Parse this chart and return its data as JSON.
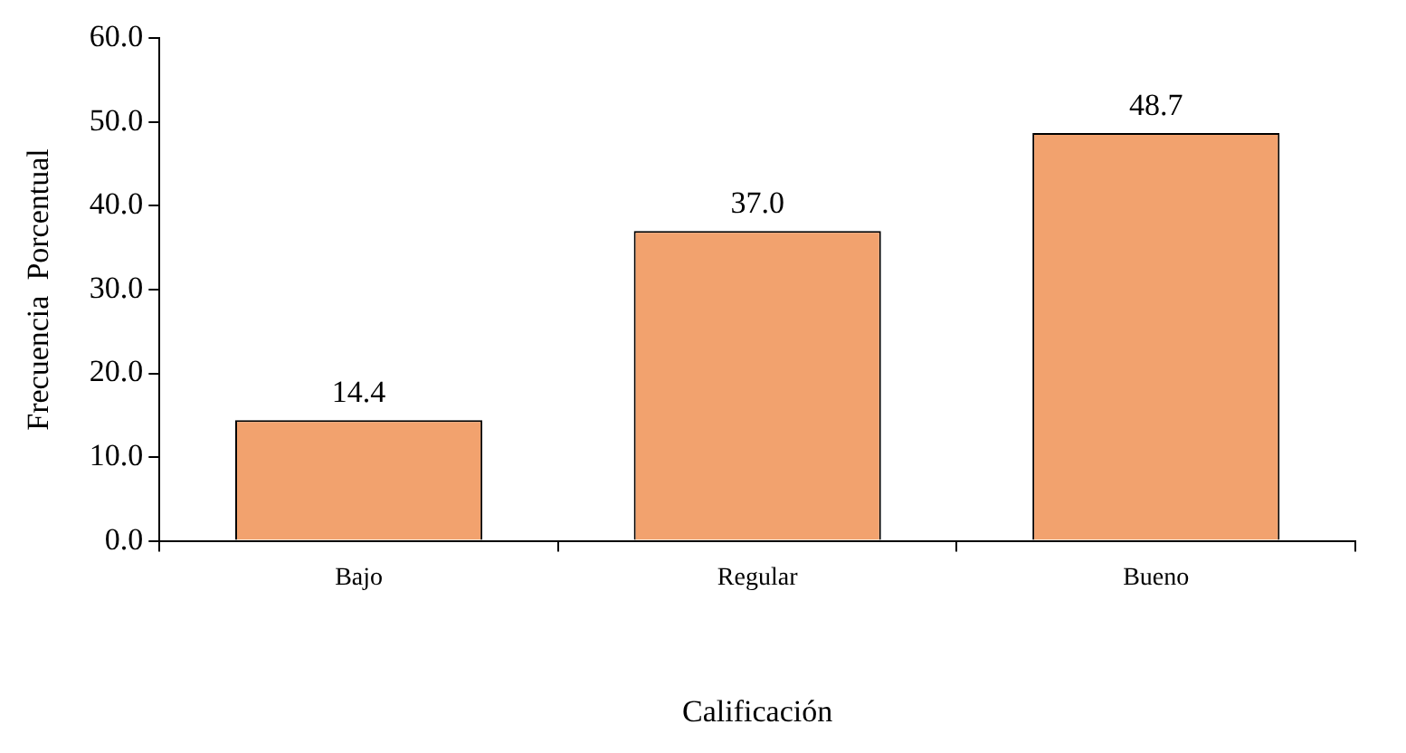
{
  "chart_data": {
    "type": "bar",
    "xlabel": "Calificación",
    "ylabel": "Frecuencia  Porcentual",
    "categories": [
      "Bajo",
      "Regular",
      "Bueno"
    ],
    "values": [
      14.4,
      37.0,
      48.7
    ],
    "value_labels": [
      "14.4",
      "37.0",
      "48.7"
    ],
    "color": "#f2a26e",
    "ylim": [
      0,
      60
    ],
    "yticks": [
      {
        "value": 0,
        "label": "0.0"
      },
      {
        "value": 10,
        "label": "10.0"
      },
      {
        "value": 20,
        "label": "20.0"
      },
      {
        "value": 30,
        "label": "30.0"
      },
      {
        "value": 40,
        "label": "40.0"
      },
      {
        "value": 50,
        "label": "50.0"
      },
      {
        "value": 60,
        "label": "60.0"
      }
    ],
    "grid": false,
    "legend": false
  }
}
